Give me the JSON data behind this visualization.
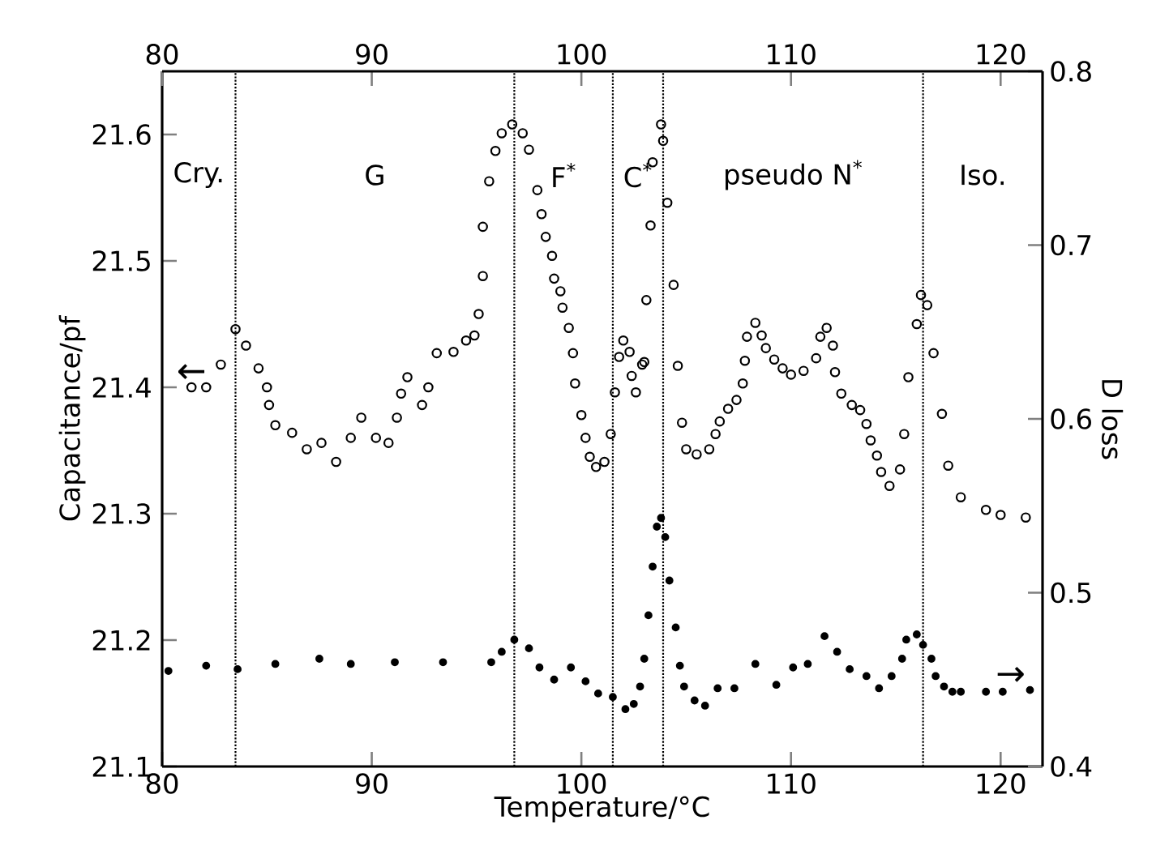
{
  "chart_data": {
    "type": "scatter",
    "xlabel": "Temperature/°C",
    "ylabel": "Capacitance/pf",
    "y2label": "D loss",
    "xlim": [
      80,
      122
    ],
    "xticks": [
      80,
      90,
      100,
      110,
      120
    ],
    "x2lim": [
      80,
      122
    ],
    "x2ticks": [
      80,
      90,
      100,
      110,
      120
    ],
    "ylim": [
      21.1,
      21.65
    ],
    "yticks": [
      21.1,
      21.2,
      21.3,
      21.4,
      21.5,
      21.6
    ],
    "y2lim": [
      0.4,
      0.8
    ],
    "y2ticks": [
      0.4,
      0.5,
      0.6,
      0.7,
      0.8
    ],
    "grid": false,
    "series": [
      {
        "color": "#000000",
        "marker": "circle",
        "x": [
          81.4,
          82.1,
          82.8,
          83.5,
          84.0,
          84.6,
          85.0,
          85.1,
          85.4,
          86.2,
          86.9,
          87.6,
          88.3,
          89.0,
          89.5,
          90.2,
          90.8,
          91.2,
          91.4,
          91.7,
          92.4,
          92.7,
          93.1,
          93.9,
          94.5,
          94.9,
          95.1,
          95.3,
          95.3,
          95.6,
          95.9,
          96.2,
          96.7,
          97.2,
          97.5,
          97.9,
          98.1,
          98.3,
          98.6,
          98.7,
          99.0,
          99.1,
          99.4,
          99.6,
          99.7,
          100.0,
          100.2,
          100.4,
          100.7,
          101.1,
          101.4,
          101.6,
          101.8,
          102.0,
          102.3,
          102.4,
          102.6,
          102.9,
          103.0,
          103.1,
          103.3,
          103.4,
          103.8,
          103.9,
          104.1,
          104.4,
          104.6,
          104.8,
          105.0,
          105.5,
          106.1,
          106.4,
          106.6,
          107.0,
          107.4,
          107.7,
          107.8,
          107.9,
          108.3,
          108.6,
          108.8,
          109.2,
          109.6,
          110.0,
          110.6,
          111.2,
          111.4,
          111.7,
          112.0,
          112.1,
          112.4,
          112.9,
          113.3,
          113.6,
          113.8,
          114.1,
          114.3,
          114.7,
          115.2,
          115.4,
          115.6,
          116.0,
          116.2,
          116.5,
          116.8,
          117.2,
          117.5,
          118.1,
          119.3,
          120.0,
          121.2
        ],
        "values": [
          21.4,
          21.4,
          21.418,
          21.446,
          21.433,
          21.415,
          21.4,
          21.386,
          21.37,
          21.364,
          21.351,
          21.356,
          21.341,
          21.36,
          21.376,
          21.36,
          21.356,
          21.376,
          21.395,
          21.408,
          21.386,
          21.4,
          21.427,
          21.428,
          21.437,
          21.441,
          21.458,
          21.488,
          21.527,
          21.563,
          21.587,
          21.601,
          21.608,
          21.601,
          21.588,
          21.556,
          21.537,
          21.519,
          21.504,
          21.486,
          21.476,
          21.463,
          21.447,
          21.427,
          21.403,
          21.378,
          21.36,
          21.345,
          21.337,
          21.341,
          21.363,
          21.396,
          21.424,
          21.437,
          21.428,
          21.409,
          21.396,
          21.418,
          21.42,
          21.469,
          21.528,
          21.578,
          21.608,
          21.595,
          21.546,
          21.481,
          21.417,
          21.372,
          21.351,
          21.347,
          21.351,
          21.363,
          21.373,
          21.383,
          21.39,
          21.403,
          21.421,
          21.44,
          21.451,
          21.441,
          21.431,
          21.422,
          21.415,
          21.41,
          21.413,
          21.423,
          21.44,
          21.447,
          21.433,
          21.412,
          21.395,
          21.386,
          21.382,
          21.371,
          21.358,
          21.346,
          21.333,
          21.322,
          21.335,
          21.363,
          21.408,
          21.45,
          21.473,
          21.465,
          21.427,
          21.379,
          21.338,
          21.313,
          21.303,
          21.299,
          21.297
        ]
      },
      {
        "color": "#000000",
        "marker": "circle",
        "axis": "y2",
        "x": [
          80.3,
          82.1,
          83.6,
          85.4,
          87.5,
          89.0,
          91.1,
          93.4,
          95.7,
          96.2,
          96.8,
          97.5,
          98.0,
          98.7,
          99.5,
          100.2,
          100.8,
          101.5,
          102.1,
          102.5,
          102.8,
          103.0,
          103.2,
          103.4,
          103.6,
          103.8,
          104.0,
          104.2,
          104.5,
          104.7,
          104.9,
          105.4,
          105.9,
          106.5,
          107.3,
          108.3,
          109.3,
          110.1,
          110.8,
          111.6,
          112.2,
          112.8,
          113.6,
          114.2,
          114.8,
          115.3,
          115.5,
          116.0,
          116.3,
          116.7,
          116.9,
          117.3,
          117.7,
          118.1,
          119.3,
          120.1,
          121.4
        ],
        "values": [
          0.455,
          0.458,
          0.456,
          0.459,
          0.462,
          0.459,
          0.46,
          0.46,
          0.46,
          0.466,
          0.473,
          0.468,
          0.457,
          0.45,
          0.457,
          0.449,
          0.442,
          0.44,
          0.433,
          0.436,
          0.446,
          0.462,
          0.487,
          0.515,
          0.538,
          0.543,
          0.532,
          0.507,
          0.48,
          0.458,
          0.446,
          0.438,
          0.435,
          0.445,
          0.445,
          0.459,
          0.447,
          0.457,
          0.459,
          0.475,
          0.466,
          0.456,
          0.452,
          0.445,
          0.452,
          0.462,
          0.473,
          0.476,
          0.47,
          0.462,
          0.452,
          0.446,
          0.443,
          0.443,
          0.443,
          0.443,
          0.444
        ]
      }
    ],
    "ref_lines": [
      {
        "axis": "x",
        "value": 83.5,
        "line_style": "dotted"
      },
      {
        "axis": "x",
        "value": 96.8,
        "line_style": "dotted"
      },
      {
        "axis": "x",
        "value": 101.5,
        "line_style": "dotted"
      },
      {
        "axis": "x",
        "value": 103.9,
        "line_style": "dotted"
      },
      {
        "axis": "x",
        "value": 116.3,
        "line_style": "dotted"
      }
    ],
    "annotations": [
      "Cry.",
      "G",
      "F$^{*}$",
      "C$^{*}$",
      "pseudo N$^{*}$",
      "Iso.",
      "←",
      "→"
    ]
  }
}
